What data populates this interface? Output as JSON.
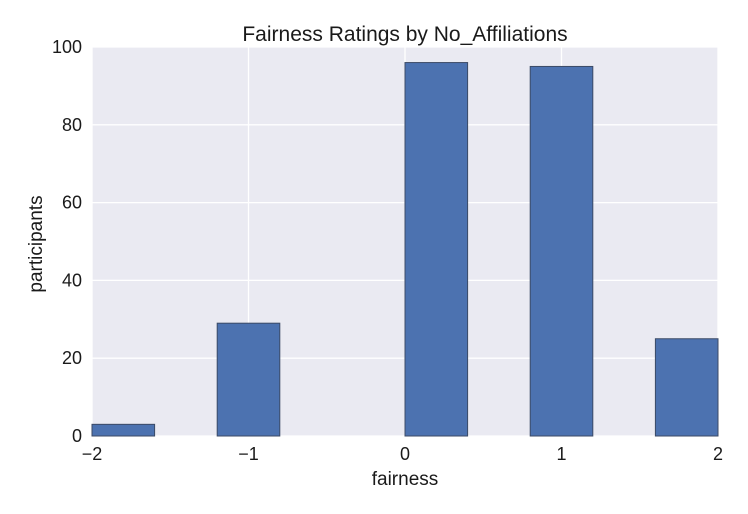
{
  "chart_data": {
    "type": "bar",
    "title": "Fairness Ratings by No_Affiliations",
    "xlabel": "fairness",
    "ylabel": "participants",
    "xlim": [
      -2,
      2
    ],
    "ylim": [
      0,
      100
    ],
    "xticks": [
      -2,
      -1,
      0,
      1,
      2
    ],
    "xtick_labels": [
      "−2",
      "−1",
      "0",
      "1",
      "2"
    ],
    "yticks": [
      0,
      20,
      40,
      60,
      80,
      100
    ],
    "ytick_labels": [
      "0",
      "20",
      "40",
      "60",
      "80",
      "100"
    ],
    "bins": [
      {
        "x0": -2.0,
        "x1": -1.6,
        "value": 3
      },
      {
        "x0": -1.2,
        "x1": -0.8,
        "value": 29
      },
      {
        "x0": 0.0,
        "x1": 0.4,
        "value": 96
      },
      {
        "x0": 0.8,
        "x1": 1.2,
        "value": 95
      },
      {
        "x0": 1.6,
        "x1": 2.0,
        "value": 25
      }
    ],
    "grid": true,
    "background_color": "#EAEAF2",
    "bar_color": "#4C72B0",
    "bar_edge_color": "#3b4a66",
    "grid_color": "#ffffff"
  }
}
